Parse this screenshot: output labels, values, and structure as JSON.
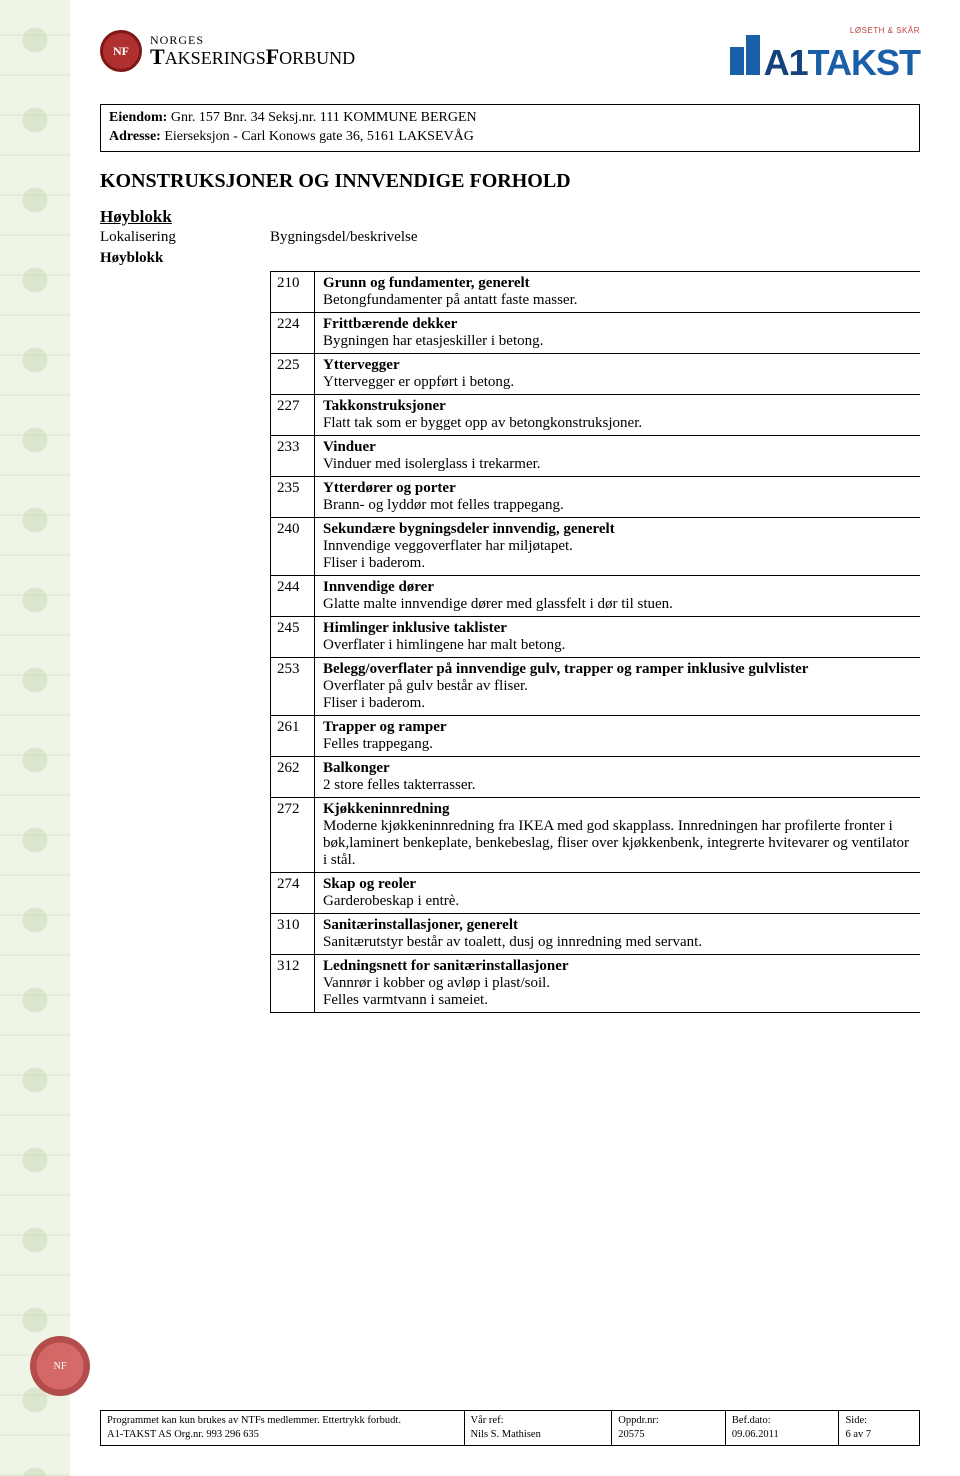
{
  "ntf_logo": {
    "line1": "NORGES",
    "line2_a": "T",
    "line2_b": "AKSERINGS",
    "line2_c": "F",
    "line2_d": "ORBUND",
    "badge": "NF"
  },
  "a1_logo": {
    "prefix": "A1",
    "main": "TAKST",
    "sub": "LØSETH & SKÅR"
  },
  "eiendom": {
    "label1": "Eiendom:",
    "val1": " Gnr. 157 Bnr. 34 Seksj.nr. 111 KOMMUNE BERGEN",
    "label2": "Adresse:",
    "val2": " Eierseksjon - Carl Konows gate 36, 5161 LAKSEVÅG"
  },
  "section_title": "KONSTRUKSJONER OG INNVENDIGE FORHOLD",
  "sub_heading": "Høyblokk",
  "col_left_1": "Lokalisering",
  "col_right_1": "Bygningsdel/beskrivelse",
  "col_left_2": "Høyblokk",
  "items": [
    {
      "code": "210",
      "title": "Grunn og fundamenter, generelt",
      "desc": "Betongfundamenter på antatt faste masser."
    },
    {
      "code": "224",
      "title": "Frittbærende dekker",
      "desc": "Bygningen har etasjeskiller i betong."
    },
    {
      "code": "225",
      "title": "Yttervegger",
      "desc": "Yttervegger er oppført i betong."
    },
    {
      "code": "227",
      "title": "Takkonstruksjoner",
      "desc": "Flatt tak som er bygget opp av betongkonstruksjoner."
    },
    {
      "code": "233",
      "title": "Vinduer",
      "desc": "Vinduer med isolerglass i trekarmer."
    },
    {
      "code": "235",
      "title": "Ytterdører og porter",
      "desc": "Brann- og lyddør mot felles trappegang."
    },
    {
      "code": "240",
      "title": "Sekundære bygningsdeler innvendig, generelt",
      "desc": "Innvendige veggoverflater har miljøtapet.\nFliser i baderom."
    },
    {
      "code": "244",
      "title": "Innvendige dører",
      "desc": "Glatte malte innvendige dører med glassfelt i dør til stuen."
    },
    {
      "code": "245",
      "title": "Himlinger inklusive taklister",
      "desc": "Overflater i himlingene har malt betong."
    },
    {
      "code": "253",
      "title": "Belegg/overflater på innvendige gulv, trapper og ramper inklusive gulvlister",
      "desc": "Overflater på gulv består av fliser.\nFliser i baderom."
    },
    {
      "code": "261",
      "title": "Trapper og ramper",
      "desc": "Felles trappegang."
    },
    {
      "code": "262",
      "title": "Balkonger",
      "desc": "2 store felles takterrasser."
    },
    {
      "code": "272",
      "title": "Kjøkkeninnredning",
      "desc": "Moderne kjøkkeninnredning fra IKEA med god skapplass. Innredningen har profilerte fronter i bøk,laminert benkeplate, benkebeslag, fliser over kjøkkenbenk, integrerte hvitevarer og ventilator i stål."
    },
    {
      "code": "274",
      "title": "Skap og reoler",
      "desc": "Garderobeskap i entrè."
    },
    {
      "code": "310",
      "title": "Sanitærinstallasjoner, generelt",
      "desc": "Sanitærutstyr består av toalett, dusj og innredning med servant."
    },
    {
      "code": "312",
      "title": "Ledningsnett for sanitærinstallasjoner",
      "desc": "Vannrør i kobber og avløp i plast/soil.\nFelles varmtvann i sameiet."
    }
  ],
  "footer": {
    "c1a": "Programmet kan kun brukes av NTFs medlemmer. Ettertrykk forbudt.",
    "c1b": "A1-TAKST AS Org.nr. 993 296 635",
    "c2h": "Vår ref:",
    "c2v": "Nils S. Mathisen",
    "c3h": "Oppdr.nr:",
    "c3v": "20575",
    "c4h": "Bef.dato:",
    "c4v": "09.06.2011",
    "c5h": "Side:",
    "c5v": "6 av 7"
  }
}
